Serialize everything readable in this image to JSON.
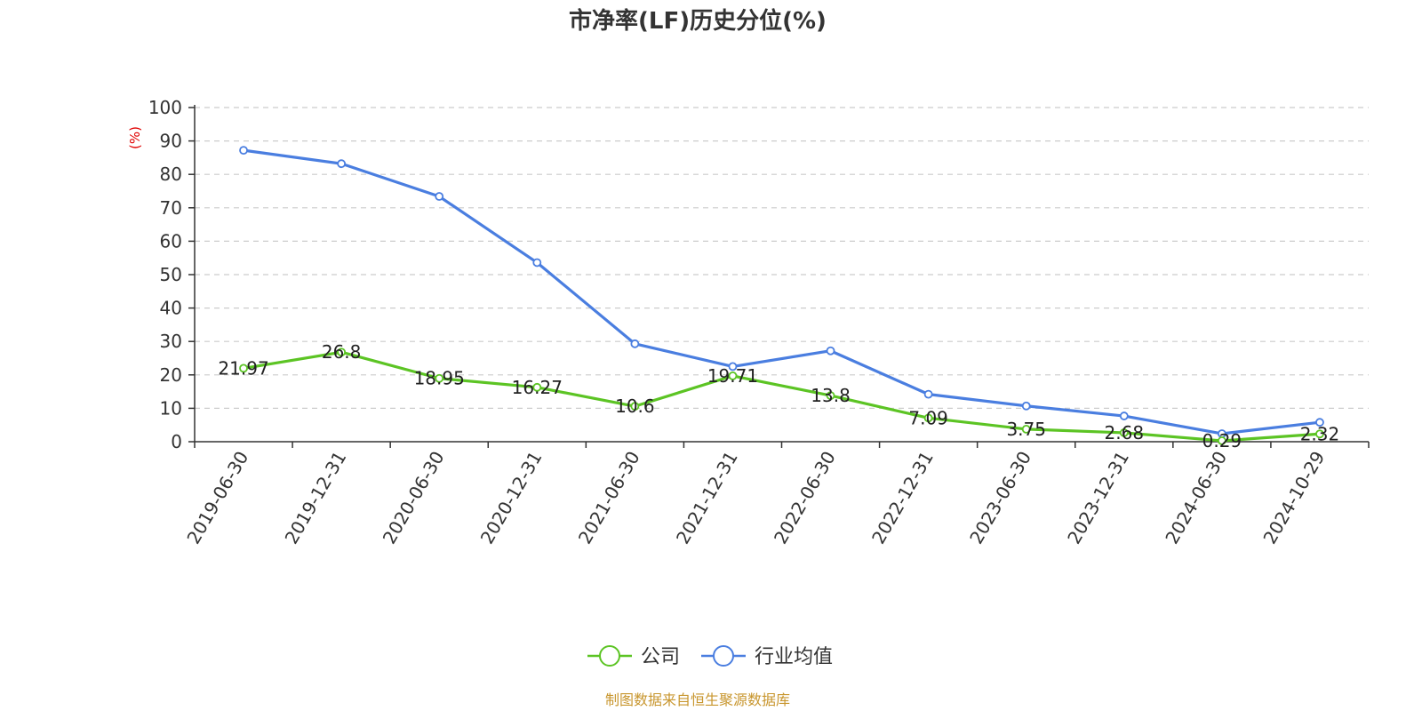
{
  "chart_data": {
    "type": "line",
    "title": "市净率(LF)历史分位(%)",
    "ylabel": "(%)",
    "ylim": [
      0,
      100
    ],
    "yticks": [
      0,
      10,
      20,
      30,
      40,
      50,
      60,
      70,
      80,
      90,
      100
    ],
    "grid": true,
    "legend_position": "bottom",
    "categories": [
      "2019-06-30",
      "2019-12-31",
      "2020-06-30",
      "2020-12-31",
      "2021-06-30",
      "2021-12-31",
      "2022-06-30",
      "2022-12-31",
      "2023-06-30",
      "2023-12-31",
      "2024-06-30",
      "2024-10-29"
    ],
    "series": [
      {
        "name": "公司",
        "color": "#5cc424",
        "values": [
          21.97,
          26.8,
          18.95,
          16.27,
          10.6,
          19.71,
          13.8,
          7.09,
          3.75,
          2.68,
          0.29,
          2.32
        ],
        "data_labels": [
          "21.97",
          "26.8",
          "18.95",
          "16.27",
          "10.6",
          "19.71",
          "13.8",
          "7.09",
          "3.75",
          "2.68",
          "0.29",
          "2.32"
        ]
      },
      {
        "name": "行业均值",
        "color": "#4a7ee0",
        "values": [
          87.2,
          83.2,
          73.4,
          53.6,
          29.3,
          22.5,
          27.2,
          14.2,
          10.7,
          7.7,
          2.4,
          5.8
        ]
      }
    ]
  },
  "footer": {
    "source": "制图数据来自恒生聚源数据库",
    "source_color": "#c8962e"
  },
  "colors": {
    "axis": "#333333",
    "grid": "#cccccc",
    "unit_label": "#e00000"
  }
}
